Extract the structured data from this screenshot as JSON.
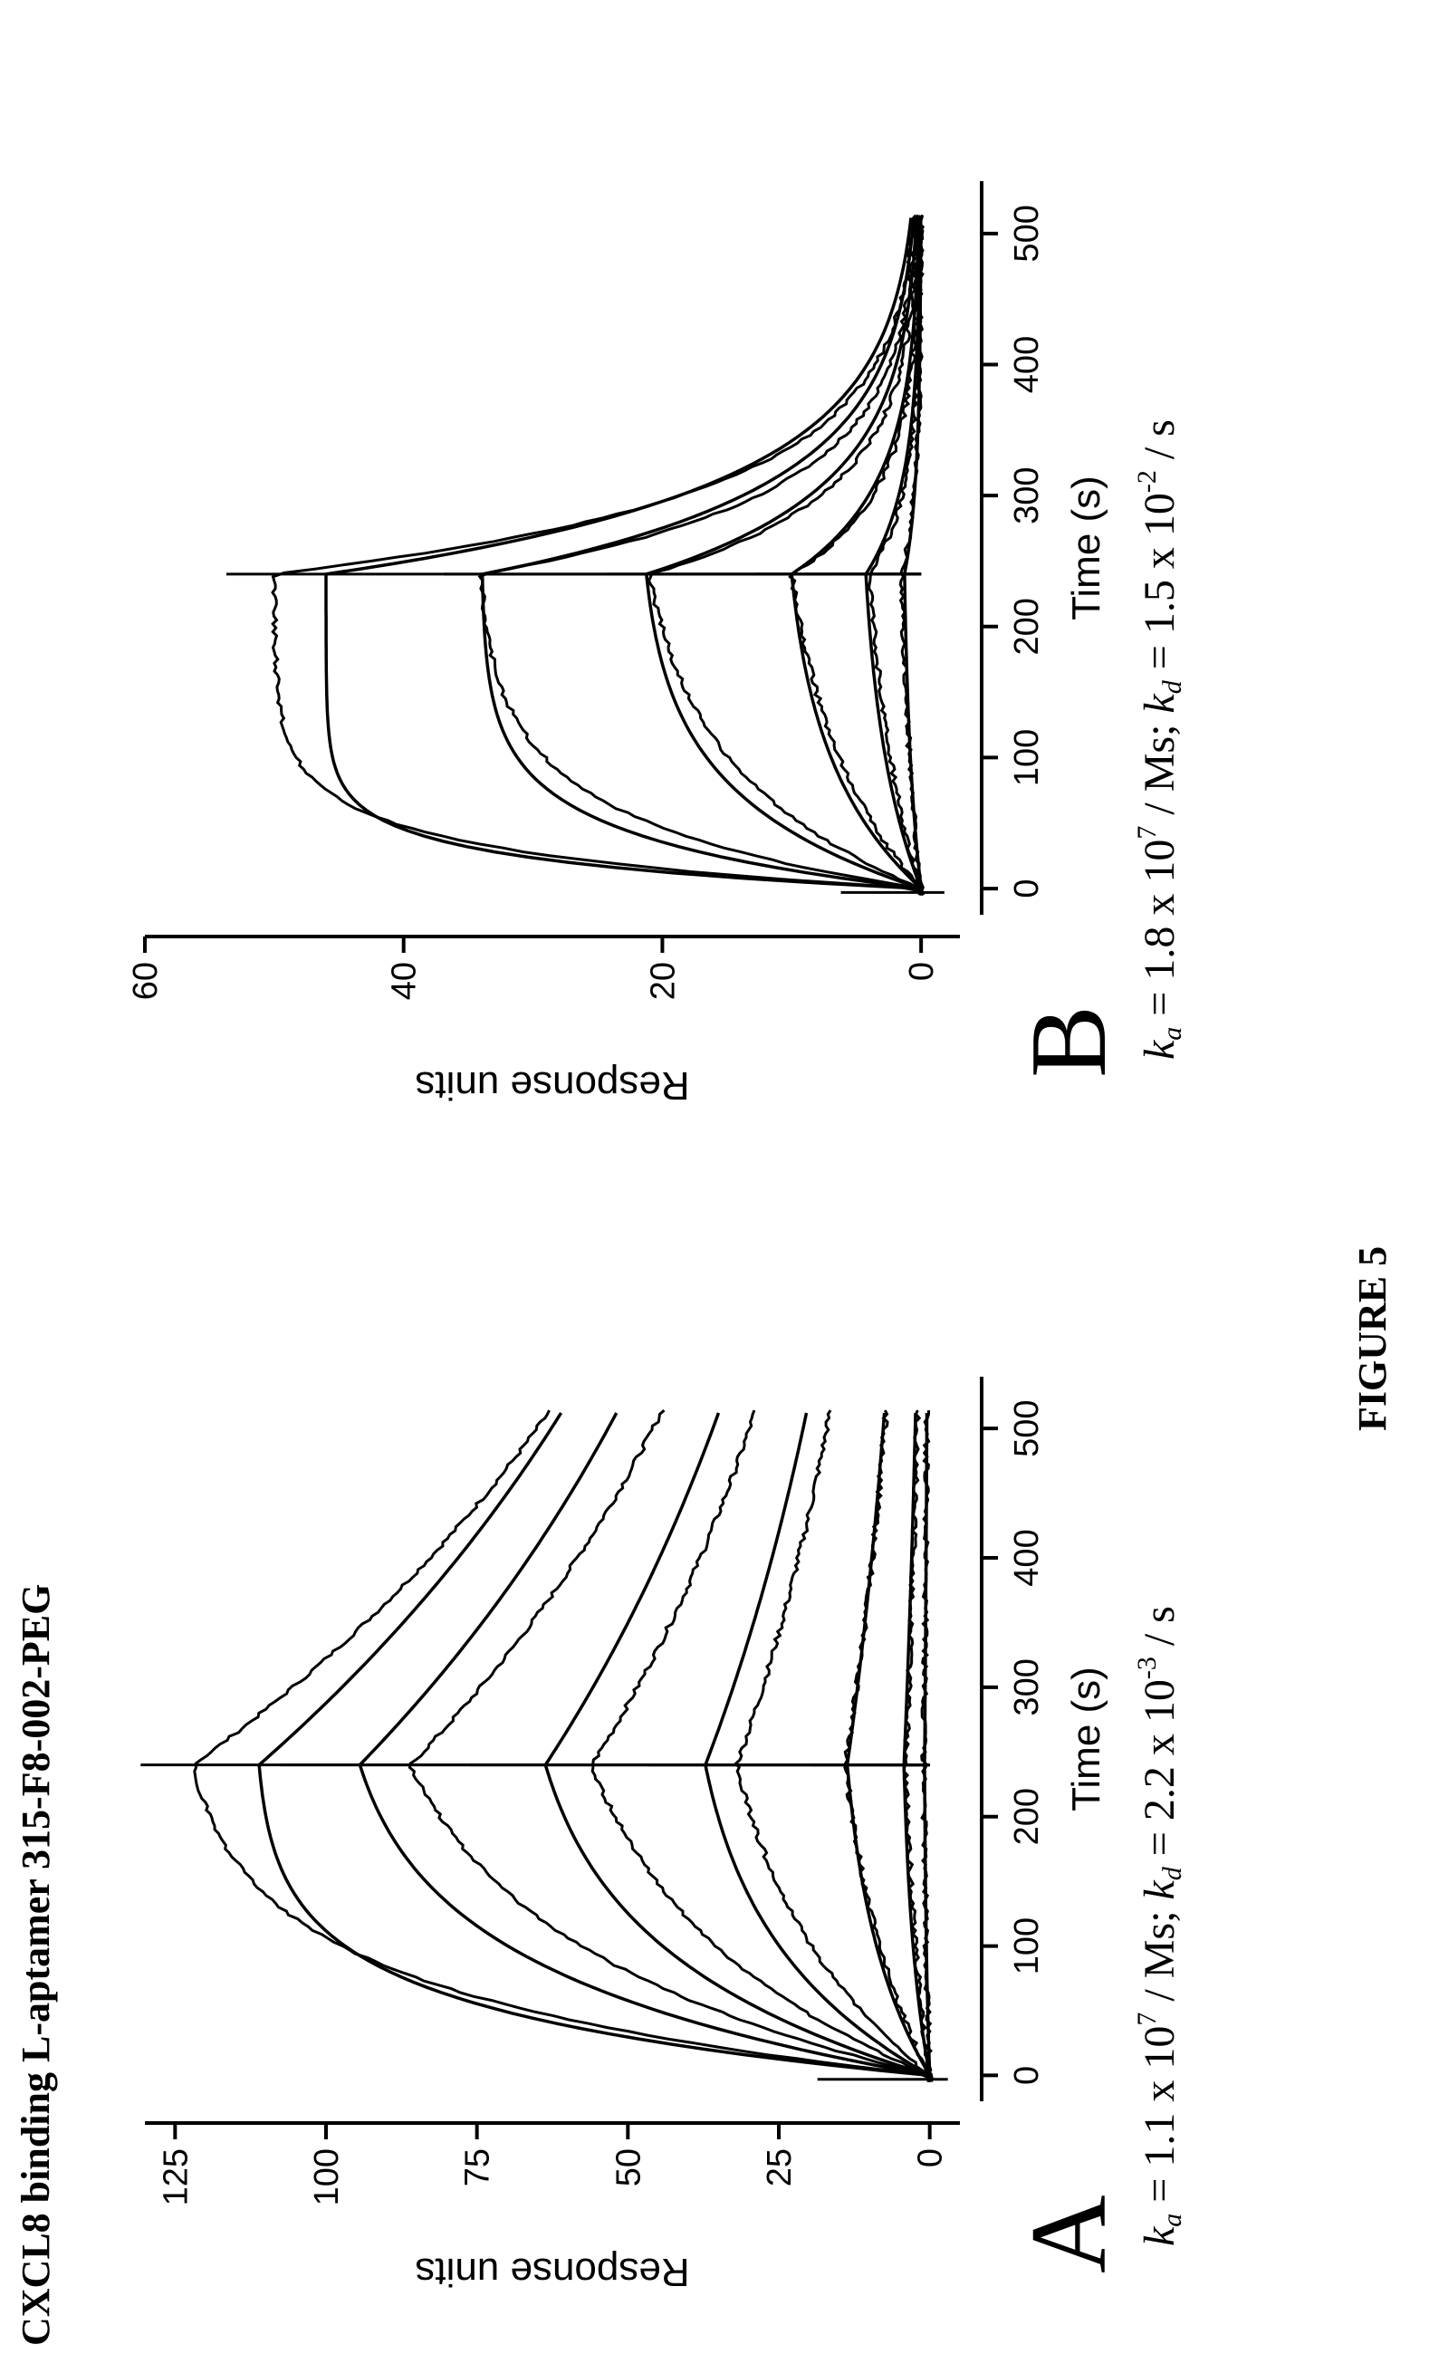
{
  "page": {
    "heading": "CXCL8 binding L-aptamer 315-F8-002-PEG",
    "figure_label": "FIGURE 5"
  },
  "panels": [
    {
      "letter": "A",
      "caption": {
        "ka_mantissa": "1.1",
        "ka_exp": "7",
        "ka_unit": "/ Ms",
        "kd_mantissa": "2.2",
        "kd_exp": "-3",
        "kd_unit": "/ s"
      }
    },
    {
      "letter": "B",
      "caption": {
        "ka_mantissa": "1.8",
        "ka_exp": "7",
        "ka_unit": "/ Ms",
        "kd_mantissa": "1.5",
        "kd_exp": "-2",
        "kd_unit": "/ s"
      }
    }
  ],
  "chart_data": [
    {
      "type": "line",
      "panel": "A",
      "xlabel": "Time (s)",
      "ylabel": "Response units",
      "xlim": [
        -20,
        540
      ],
      "ylim": [
        -5,
        130
      ],
      "xticks": [
        0,
        100,
        200,
        300,
        400,
        500
      ],
      "yticks": [
        0,
        25,
        50,
        75,
        100,
        125
      ],
      "injection_end": 240,
      "curves": [
        {
          "association_plateau": 112,
          "association_rate": 0.02,
          "observed_peak": 122,
          "dissociation_rate": 0.0022
        },
        {
          "association_plateau": 100,
          "association_rate": 0.012,
          "observed_peak": 86,
          "dissociation_rate": 0.0022
        },
        {
          "association_plateau": 70,
          "association_rate": 0.01,
          "observed_peak": 56,
          "dissociation_rate": 0.0022
        },
        {
          "association_plateau": 42,
          "association_rate": 0.009,
          "observed_peak": 32,
          "dissociation_rate": 0.0022
        },
        {
          "association_plateau": 16,
          "association_rate": 0.008,
          "observed_peak": 14,
          "dissociation_rate": 0.0022
        },
        {
          "association_plateau": 5,
          "association_rate": 0.008,
          "observed_peak": 4,
          "dissociation_rate": 0.0022
        },
        {
          "association_plateau": 1,
          "association_rate": 0.008,
          "observed_peak": 1,
          "dissociation_rate": 0.0022
        }
      ]
    },
    {
      "type": "line",
      "panel": "B",
      "xlabel": "Time (s)",
      "ylabel": "Response units",
      "xlim": [
        -20,
        540
      ],
      "ylim": [
        -3,
        60
      ],
      "xticks": [
        0,
        100,
        200,
        300,
        400,
        500
      ],
      "yticks": [
        0,
        20,
        40,
        60
      ],
      "injection_end": 240,
      "curves": [
        {
          "association_plateau": 46,
          "association_rate": 0.045,
          "observed_peak": 50,
          "dissociation_rate": 0.015
        },
        {
          "association_plateau": 34,
          "association_rate": 0.025,
          "observed_peak": 34,
          "dissociation_rate": 0.015
        },
        {
          "association_plateau": 22,
          "association_rate": 0.014,
          "observed_peak": 21,
          "dissociation_rate": 0.015
        },
        {
          "association_plateau": 11,
          "association_rate": 0.01,
          "observed_peak": 10,
          "dissociation_rate": 0.015
        },
        {
          "association_plateau": 5,
          "association_rate": 0.008,
          "observed_peak": 4,
          "dissociation_rate": 0.015
        },
        {
          "association_plateau": 1.5,
          "association_rate": 0.008,
          "observed_peak": 1.5,
          "dissociation_rate": 0.015
        }
      ]
    }
  ]
}
